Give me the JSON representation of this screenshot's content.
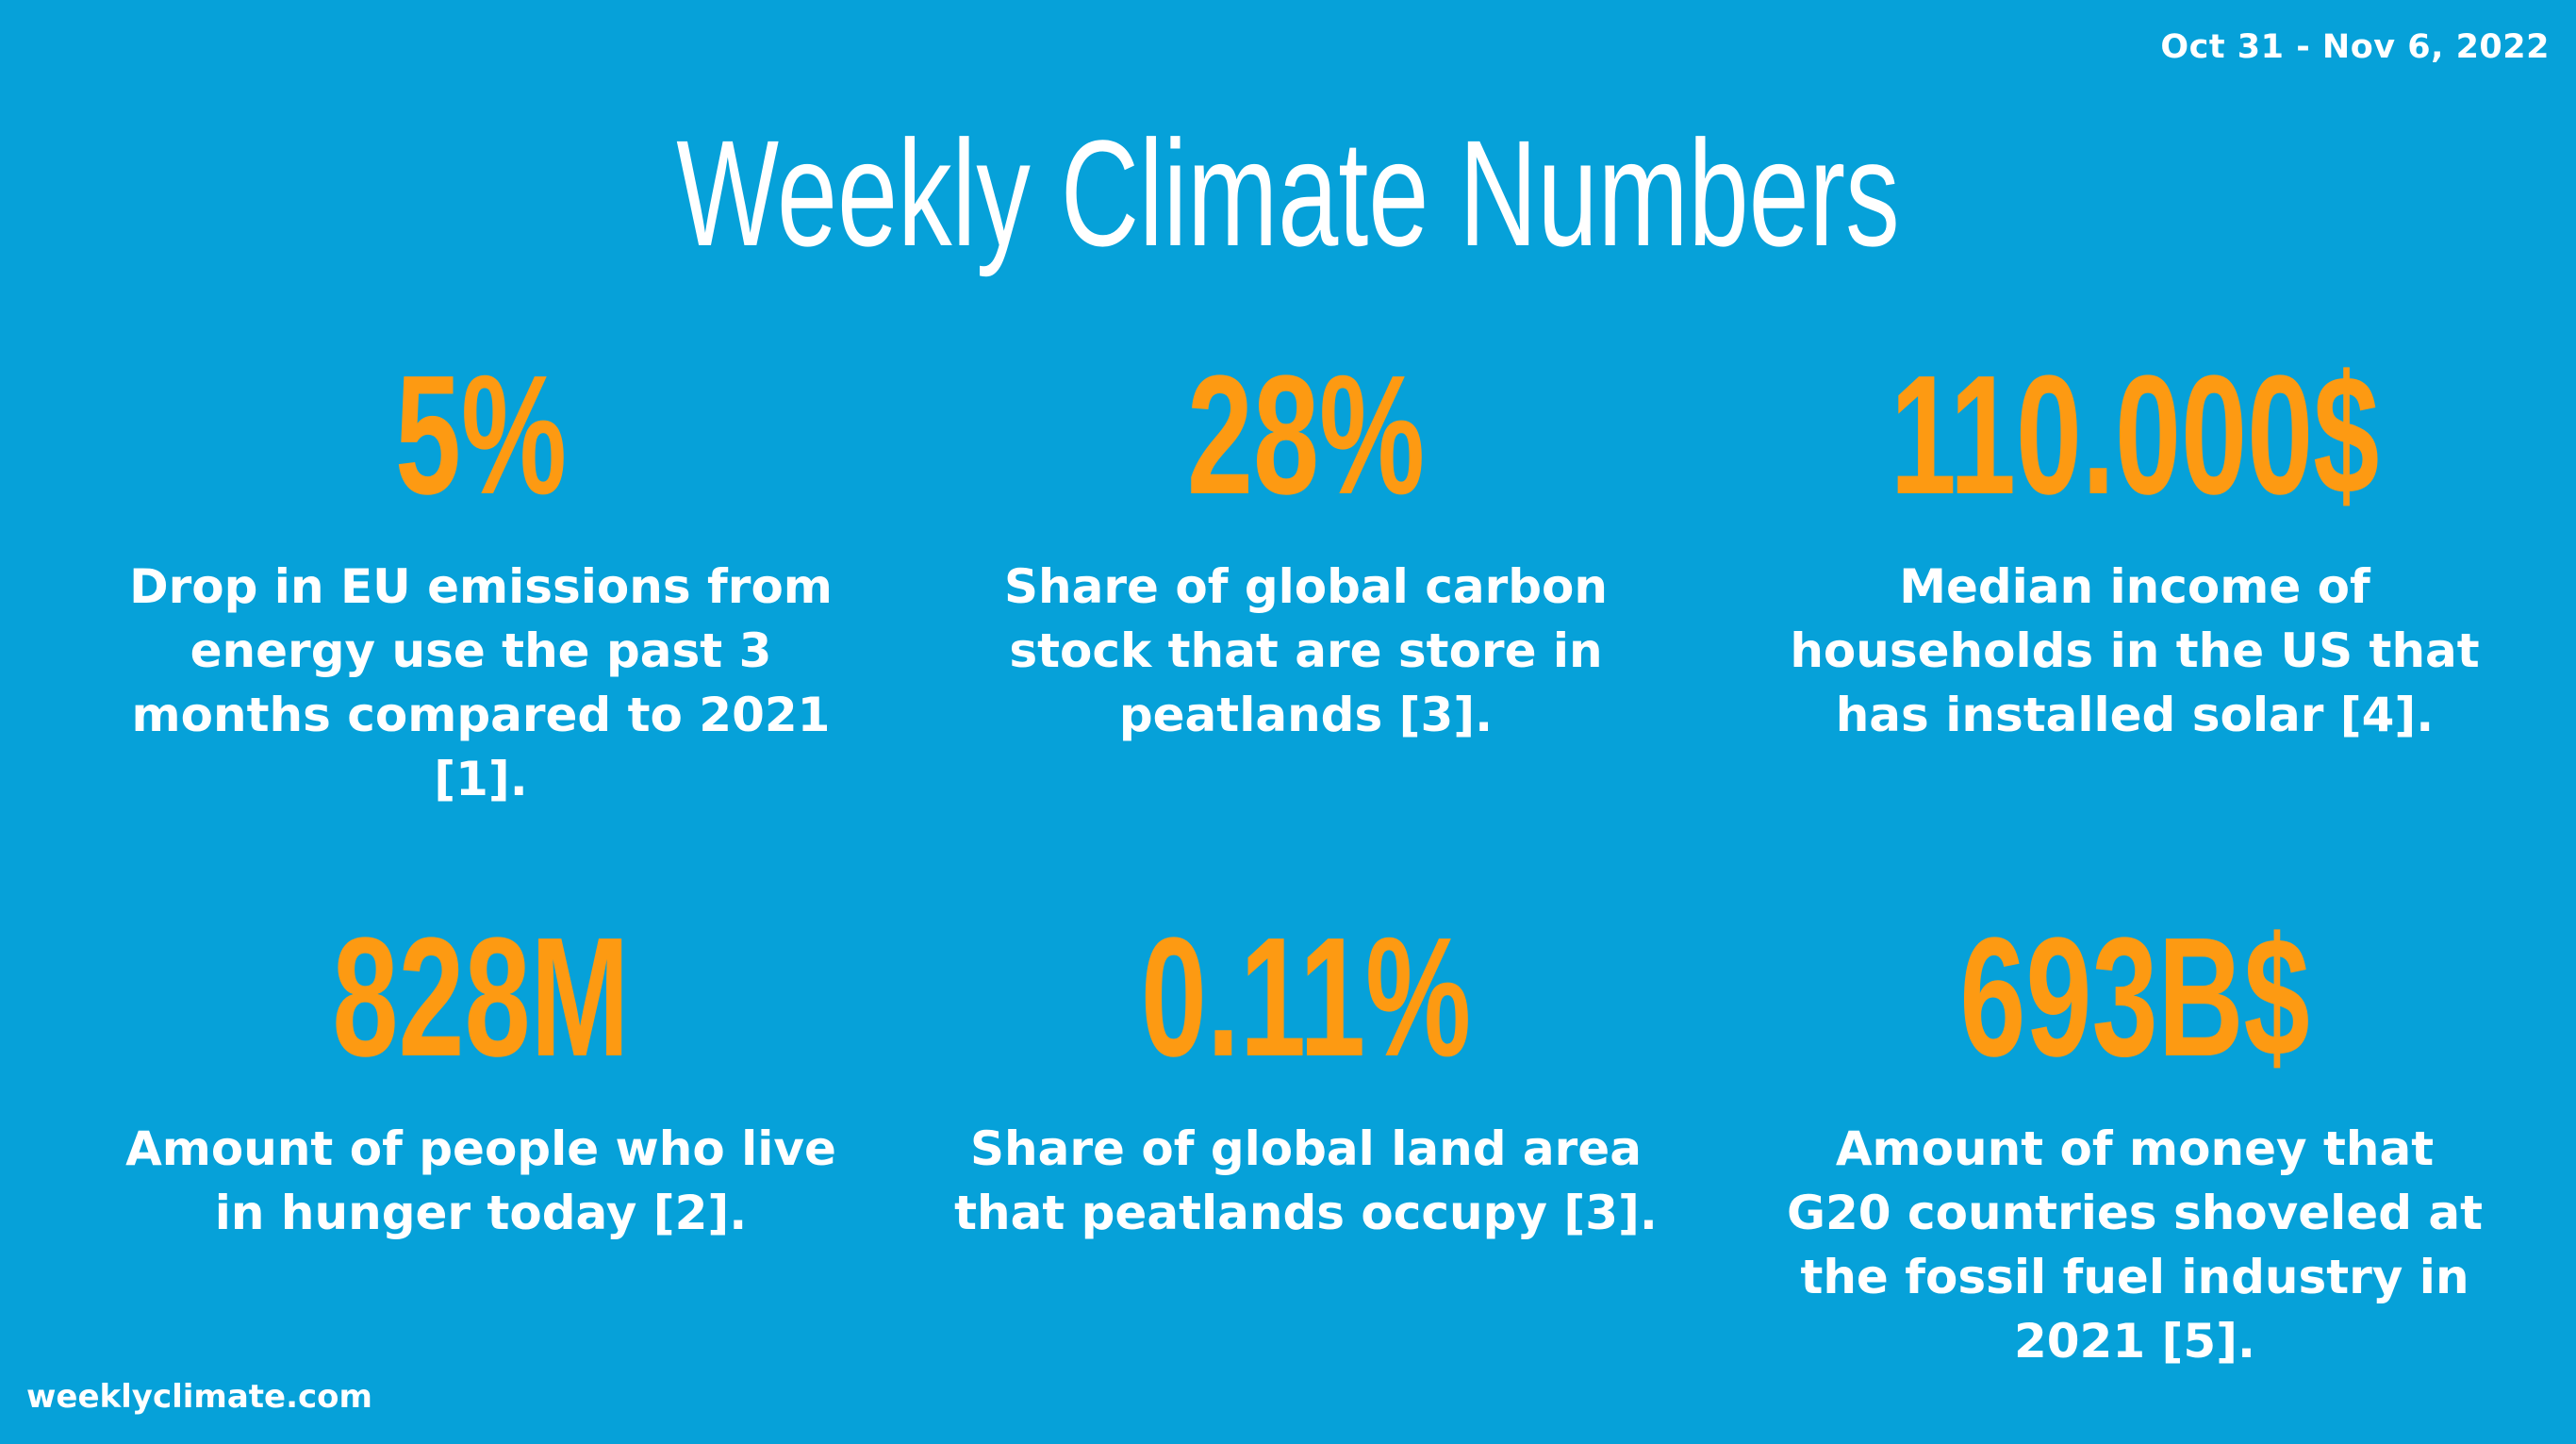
{
  "header": {
    "date_range": "Oct 31 - Nov 6, 2022",
    "title": "Weekly Climate Numbers"
  },
  "stats": [
    {
      "value": "5%",
      "description": "Drop in EU emissions from energy use the past 3 months compared to 2021 [1]."
    },
    {
      "value": "28%",
      "description": "Share of global carbon stock that are store in peatlands [3]."
    },
    {
      "value": "110.000$",
      "description": "Median income of households in the US that has installed solar [4]."
    },
    {
      "value": "828M",
      "description": "Amount of people who live in hunger today [2]."
    },
    {
      "value": "0.11%",
      "description": "Share of global land area that peatlands occupy [3]."
    },
    {
      "value": "693B$",
      "description": "Amount of money that G20 countries shoveled at the fossil fuel industry in 2021 [5]."
    }
  ],
  "footer": {
    "site": "weeklyclimate.com"
  },
  "colors": {
    "background": "#06a1d9",
    "accent": "#fd9a12",
    "text": "#ffffff"
  }
}
